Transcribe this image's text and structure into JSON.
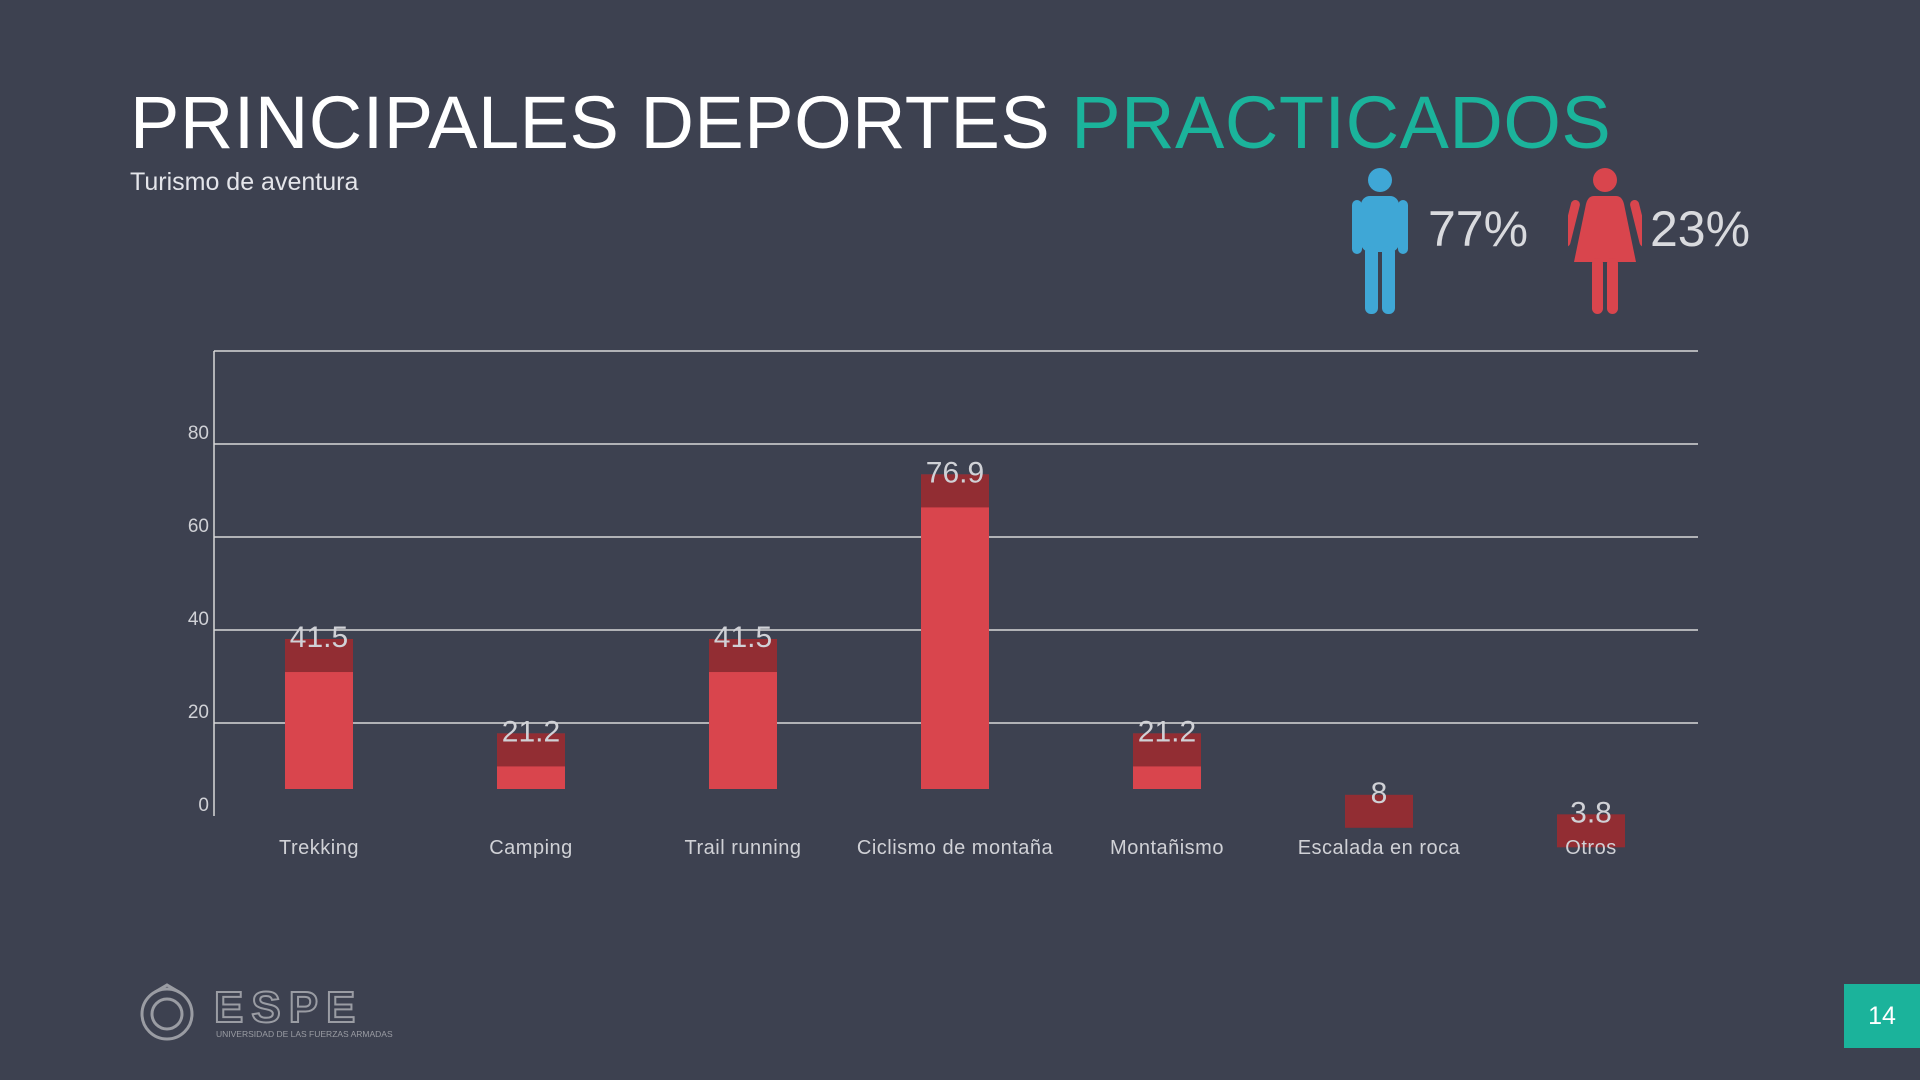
{
  "slide": {
    "title_main": "PRINCIPALES DEPORTES",
    "title_accent": "PRACTICADOS",
    "subtitle": "Turismo de aventura",
    "page_number": "14"
  },
  "gender_stats": {
    "male_percent": "77%",
    "female_percent": "23%",
    "male_color": "#3fa7d6",
    "female_color": "#d9454d"
  },
  "colors": {
    "background": "#3d4150",
    "accent": "#1bb39b",
    "bar": "#d9454d",
    "bar_top": "#922d33",
    "grid": "#d8d8d8",
    "label": "#d0d1d6"
  },
  "logo": {
    "text": "ESPE",
    "subtext": "UNIVERSIDAD DE LAS FUERZAS ARMADAS"
  },
  "chart_data": {
    "type": "bar",
    "title": "",
    "xlabel": "",
    "ylabel": "",
    "categories": [
      "Trekking",
      "Camping",
      "Trail running",
      "Ciclismo de montaña",
      "Montañismo",
      "Escalada en roca",
      "Otros"
    ],
    "values": [
      41.5,
      21.2,
      41.5,
      76.9,
      21.2,
      8,
      3.8
    ],
    "data_labels": [
      "41.5",
      "21.2",
      "41.5",
      "76.9",
      "21.2",
      "8",
      "3.8"
    ],
    "yticks": [
      0,
      20,
      40,
      60,
      80
    ],
    "ylim": [
      0,
      100
    ],
    "grid": true,
    "legend": "none"
  }
}
